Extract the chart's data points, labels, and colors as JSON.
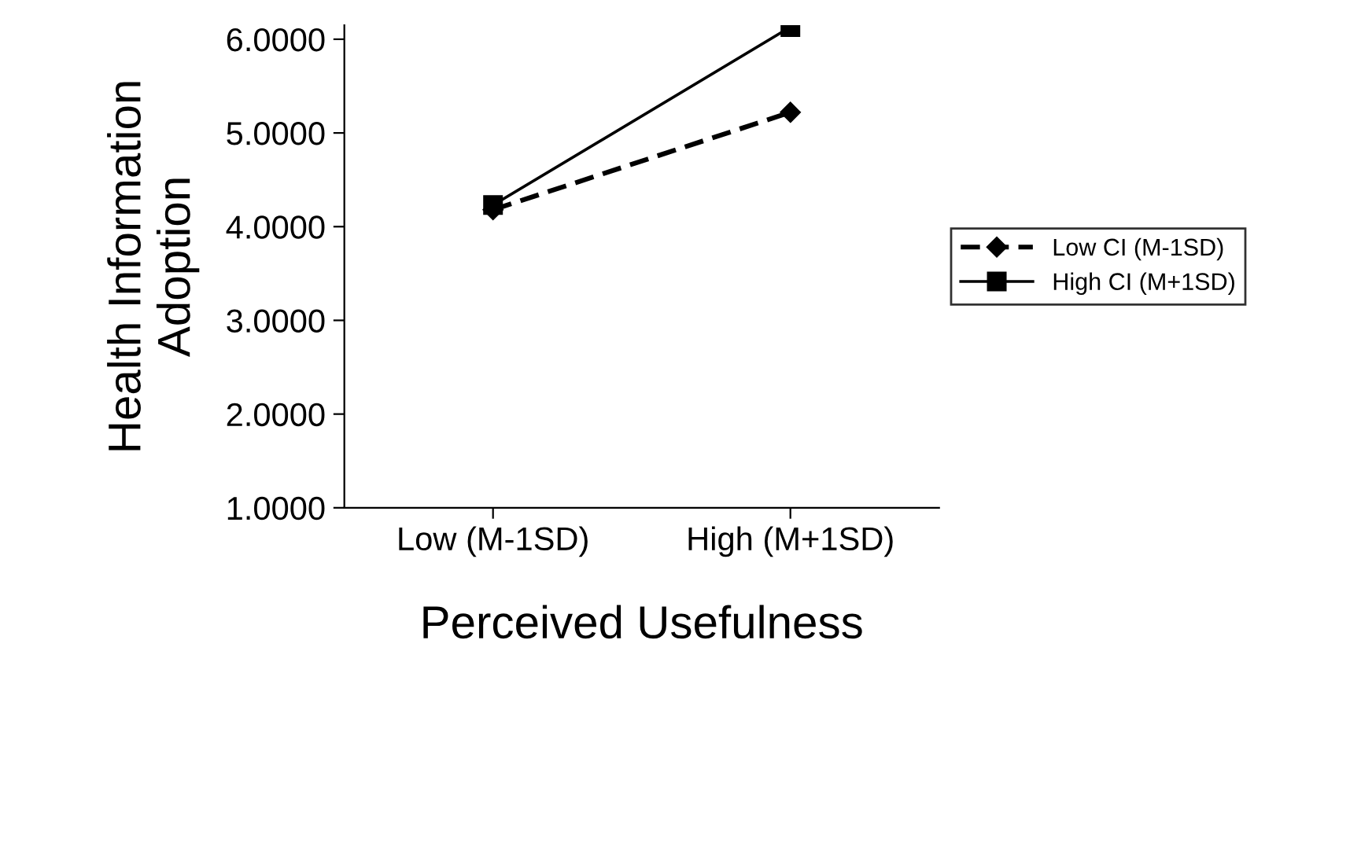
{
  "chart_data": {
    "type": "line",
    "xlabel": "Perceived Usefulness",
    "ylabel": "Health Information\nAdoption",
    "categories": [
      "Low (M-1SD)",
      "High (M+1SD)"
    ],
    "series": [
      {
        "name": "Low CI (M-1SD)",
        "color": "#000000",
        "values": [
          4.18,
          5.22
        ],
        "marker": "diamond",
        "line_style": "dashed"
      },
      {
        "name": "High CI (M+1SD)",
        "color": "#000000",
        "values": [
          4.23,
          6.13
        ],
        "marker": "square",
        "line_style": "solid"
      }
    ],
    "ylim": [
      1,
      6.15
    ],
    "yticks": [
      {
        "value": 1,
        "label": "1.0000"
      },
      {
        "value": 2,
        "label": "2.0000"
      },
      {
        "value": 3,
        "label": "3.0000"
      },
      {
        "value": 4,
        "label": "4.0000"
      },
      {
        "value": 5,
        "label": "5.0000"
      },
      {
        "value": 6,
        "label": "6.0000"
      }
    ],
    "grid": false,
    "legend": "right"
  }
}
